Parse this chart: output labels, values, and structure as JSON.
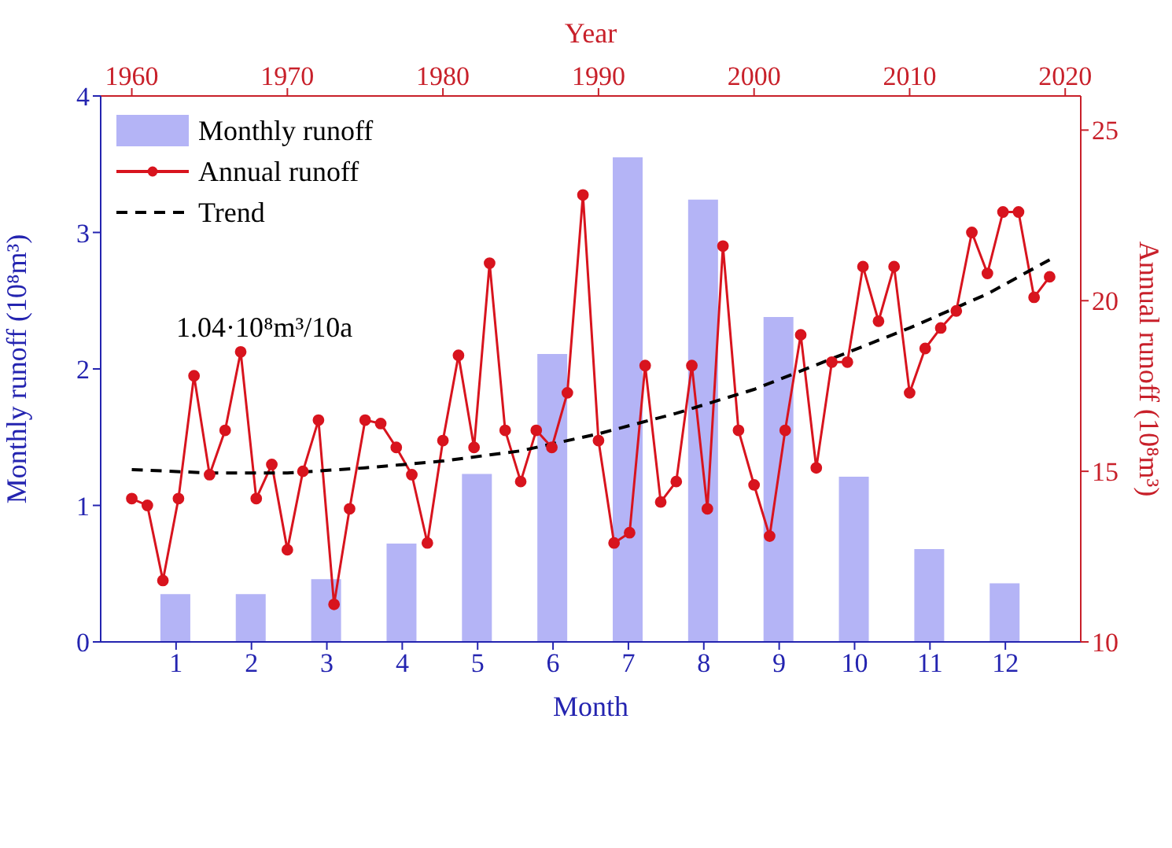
{
  "chart_data": {
    "type": "bar",
    "xlabel": "Month",
    "x2label": "Year",
    "ylabel": "Annual runoff (10⁸m³)",
    "y2label": "Monthly runoff (10⁸m³)",
    "xlim": [
      0,
      13
    ],
    "xticks": [
      1,
      2,
      3,
      4,
      5,
      6,
      7,
      8,
      9,
      10,
      11,
      12
    ],
    "x2lim": [
      1958,
      2021
    ],
    "x2ticks": [
      1960,
      1970,
      1980,
      1990,
      2000,
      2010,
      2020
    ],
    "ylim": [
      10,
      26
    ],
    "yticks": [
      10,
      15,
      20,
      25
    ],
    "y2lim": [
      0,
      4
    ],
    "y2ticks": [
      0,
      1,
      2,
      3,
      4
    ],
    "annotations": [
      "1.04·10⁸m³/10a"
    ],
    "legend": "top left",
    "grid": false,
    "series": [
      {
        "name": "Monthly runoff",
        "color": "#b4b4f6",
        "axis": "y2",
        "x": [
          1,
          2,
          3,
          4,
          5,
          6,
          7,
          8,
          9,
          10,
          11,
          12
        ],
        "values": [
          0.35,
          0.35,
          0.46,
          0.72,
          1.23,
          2.11,
          3.55,
          3.24,
          2.38,
          1.21,
          0.68,
          0.43
        ]
      },
      {
        "type": "line",
        "name": "Annual runoff",
        "color": "#d8141e",
        "axis": "x2",
        "marker": "circle",
        "line_style": "solid",
        "x": [
          1960,
          1961,
          1962,
          1963,
          1964,
          1965,
          1966,
          1967,
          1968,
          1969,
          1970,
          1971,
          1972,
          1973,
          1974,
          1975,
          1976,
          1977,
          1978,
          1979,
          1980,
          1981,
          1982,
          1983,
          1984,
          1985,
          1986,
          1987,
          1988,
          1989,
          1990,
          1991,
          1992,
          1993,
          1994,
          1995,
          1996,
          1997,
          1998,
          1999,
          2000,
          2001,
          2002,
          2003,
          2004,
          2005,
          2006,
          2007,
          2008,
          2009,
          2010,
          2011,
          2012,
          2013,
          2014,
          2015,
          2016,
          2017,
          2018,
          2019
        ],
        "values": [
          14.2,
          14.0,
          11.8,
          14.2,
          17.8,
          14.9,
          16.2,
          18.5,
          14.2,
          15.2,
          12.7,
          15.0,
          16.5,
          11.1,
          13.9,
          16.5,
          16.4,
          15.7,
          14.9,
          12.9,
          15.9,
          18.4,
          15.7,
          21.1,
          16.2,
          14.7,
          16.2,
          15.7,
          17.3,
          23.1,
          15.9,
          12.9,
          13.2,
          18.1,
          14.1,
          14.7,
          18.1,
          13.9,
          21.6,
          16.2,
          14.6,
          13.1,
          16.2,
          19.0,
          15.1,
          18.2,
          18.2,
          21.0,
          19.4,
          21.0,
          17.3,
          18.6,
          19.2,
          19.7,
          22.0,
          20.8,
          22.6,
          22.6,
          20.1,
          20.7
        ]
      },
      {
        "type": "line",
        "name": "Trend",
        "color": "#000000",
        "axis": "x2",
        "marker": "none",
        "line_style": "dashed",
        "x": [
          1960,
          1965,
          1970,
          1975,
          1980,
          1985,
          1990,
          1995,
          2000,
          2005,
          2010,
          2015,
          2019
        ],
        "values": [
          15.05,
          14.95,
          14.95,
          15.1,
          15.3,
          15.6,
          16.1,
          16.7,
          17.4,
          18.3,
          19.2,
          20.2,
          21.2
        ]
      }
    ]
  }
}
